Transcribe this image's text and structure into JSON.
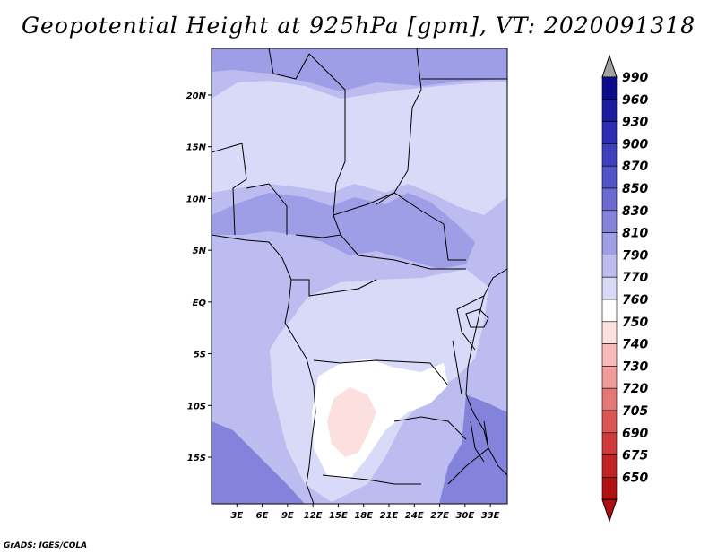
{
  "title": "Geopotential Height at 925hPa [gpm], VT: 2020091318",
  "credit": "GrADS: IGES/COLA",
  "map": {
    "lat_range": [
      -19.5,
      24.5
    ],
    "lon_range": [
      0,
      35
    ],
    "lat_labels": [
      {
        "value": 20,
        "text": "20N"
      },
      {
        "value": 15,
        "text": "15N"
      },
      {
        "value": 10,
        "text": "10N"
      },
      {
        "value": 5,
        "text": "5N"
      },
      {
        "value": 0,
        "text": "EQ"
      },
      {
        "value": -5,
        "text": "5S"
      },
      {
        "value": -10,
        "text": "10S"
      },
      {
        "value": -15,
        "text": "15S"
      }
    ],
    "lon_labels": [
      {
        "value": 3,
        "text": "3E"
      },
      {
        "value": 6,
        "text": "6E"
      },
      {
        "value": 9,
        "text": "9E"
      },
      {
        "value": 12,
        "text": "12E"
      },
      {
        "value": 15,
        "text": "15E"
      },
      {
        "value": 18,
        "text": "18E"
      },
      {
        "value": 21,
        "text": "21E"
      },
      {
        "value": 24,
        "text": "24E"
      },
      {
        "value": 27,
        "text": "27E"
      },
      {
        "value": 30,
        "text": "30E"
      },
      {
        "value": 33,
        "text": "33E"
      }
    ]
  },
  "colorbar": {
    "labels": [
      "990",
      "960",
      "930",
      "900",
      "870",
      "850",
      "830",
      "810",
      "790",
      "770",
      "760",
      "750",
      "740",
      "730",
      "720",
      "705",
      "690",
      "675",
      "650"
    ],
    "colors": [
      "#0d0d8c",
      "#1c1ca0",
      "#2d2db4",
      "#3f3fbf",
      "#5353c9",
      "#6a6ad2",
      "#8383dc",
      "#9e9ee6",
      "#bcbcf0",
      "#d9d9f8",
      "#ffffff",
      "#fce0e0",
      "#f7baba",
      "#f09a9a",
      "#e67575",
      "#dc5555",
      "#d03a3a",
      "#c22424",
      "#b01010"
    ],
    "over_color": "#a0a0a0",
    "under_color": "#b01010"
  },
  "field_colors": {
    "c790": "#bcbcf0",
    "c770": "#d9d9f8",
    "c760": "#ffffff",
    "c750": "#fce0e0",
    "c810": "#9e9ee6",
    "c830": "#8383dc"
  }
}
